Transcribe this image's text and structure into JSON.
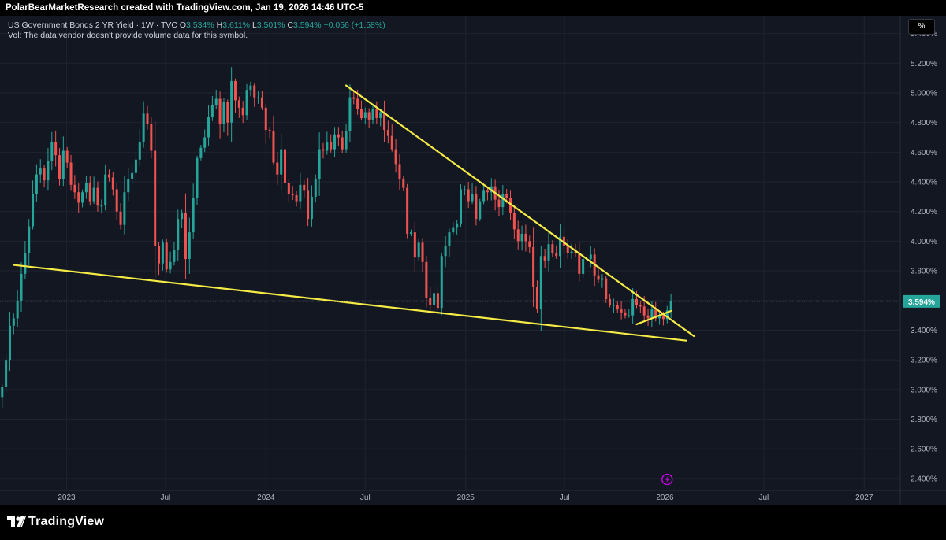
{
  "header": {
    "attribution": "PolarBearMarketResearch created with TradingView.com, Jan 19, 2026 14:46 UTC-5"
  },
  "legend": {
    "symbol_line": "US Government Bonds 2 YR Yield · 1W · TVC",
    "open_key": "O",
    "open": "3.534%",
    "high_key": "H",
    "high": "3.611%",
    "low_key": "L",
    "low": "3.501%",
    "close_key": "C",
    "close": "3.594%",
    "change": "+0.056 (+1.58%)",
    "vol_note": "Vol: The data vendor doesn't provide volume data for this symbol."
  },
  "scale_unit": "%",
  "footer": {
    "brand": "TradingView"
  },
  "colors": {
    "background": "#131722",
    "up": "#26a69a",
    "down": "#ef5350",
    "trendline": "#f5eb45",
    "grid": "#1f2330",
    "axis_text": "#b2b5be",
    "last_price_badge": "#26a69a"
  },
  "chart_data": {
    "type": "candlestick",
    "title": "US Government Bonds 2 YR Yield · 1W · TVC",
    "xlabel": "",
    "ylabel": "",
    "x_ticks": [
      "2023",
      "Jul",
      "2024",
      "Jul",
      "2025",
      "Jul",
      "2026",
      "Jul",
      "2027"
    ],
    "x_tick_dates": [
      "2023-01-01",
      "2023-07-01",
      "2024-01-01",
      "2024-07-01",
      "2025-01-01",
      "2025-07-01",
      "2026-01-01",
      "2026-07-01",
      "2027-01-01"
    ],
    "xlim": [
      "2022-09-01",
      "2027-03-08"
    ],
    "y_ticks": [
      "2.400%",
      "2.600%",
      "2.800%",
      "3.000%",
      "3.200%",
      "3.400%",
      "3.600%",
      "3.800%",
      "4.000%",
      "4.200%",
      "4.400%",
      "4.600%",
      "4.800%",
      "5.000%",
      "5.200%",
      "5.400%"
    ],
    "y_tick_values": [
      2.4,
      2.6,
      2.8,
      3.0,
      3.2,
      3.4,
      3.6,
      3.8,
      4.0,
      4.2,
      4.4,
      4.6,
      4.8,
      5.0,
      5.2,
      5.4
    ],
    "ylim": [
      2.32,
      5.52
    ],
    "grid": true,
    "last_price": {
      "value": 3.594,
      "label": "3.594%"
    },
    "series": [
      {
        "close": [
          3.02,
          3.2,
          3.43,
          3.48,
          3.6,
          3.78,
          3.92,
          4.1,
          4.32,
          4.45,
          4.49,
          4.41,
          4.54,
          4.67,
          4.58,
          4.42,
          4.61,
          4.53,
          4.38,
          4.33,
          4.26,
          4.33,
          4.39,
          4.27,
          4.36,
          4.24,
          4.24,
          4.45,
          4.43,
          4.35,
          4.2,
          4.11,
          4.33,
          4.42,
          4.46,
          4.55,
          4.67,
          4.86,
          4.79,
          4.61,
          3.97,
          3.85,
          3.99,
          3.81,
          3.86,
          3.94,
          4.15,
          4.19,
          3.88,
          4.06,
          4.29,
          4.56,
          4.63,
          4.7,
          4.84,
          4.92,
          4.96,
          4.79,
          4.94,
          4.8,
          5.08,
          4.95,
          4.9,
          4.85,
          5.02,
          5.05,
          4.97,
          4.97,
          4.9,
          4.75,
          4.74,
          4.53,
          4.45,
          4.62,
          4.39,
          4.32,
          4.31,
          4.27,
          4.38,
          4.34,
          4.15,
          4.3,
          4.42,
          4.62,
          4.61,
          4.67,
          4.62,
          4.72,
          4.7,
          4.62,
          4.74,
          4.97,
          4.96,
          4.89,
          4.83,
          4.87,
          4.82,
          4.89,
          4.83,
          4.87,
          4.75,
          4.71,
          4.62,
          4.52,
          4.42,
          4.36,
          4.05,
          4.06,
          3.89,
          3.99,
          3.86,
          3.62,
          3.57,
          3.65,
          3.55,
          3.9,
          3.97,
          4.06,
          4.09,
          4.12,
          4.35,
          4.35,
          4.27,
          4.32,
          4.15,
          4.27,
          4.34,
          4.33,
          4.37,
          4.28,
          4.23,
          4.32,
          4.29,
          4.19,
          4.08,
          4.0,
          4.05,
          4.0,
          3.96,
          3.69,
          3.54,
          3.9,
          3.87,
          3.98,
          3.92,
          3.9,
          4.03,
          3.97,
          3.92,
          3.93,
          3.92,
          3.78,
          3.88,
          3.88,
          3.91,
          3.77,
          3.74,
          3.75,
          3.61,
          3.57,
          3.57,
          3.54,
          3.52,
          3.5,
          3.5,
          3.61,
          3.57,
          3.56,
          3.5,
          3.48,
          3.54,
          3.48,
          3.5,
          3.475,
          3.534,
          3.594
        ],
        "open": [
          2.95,
          3.02,
          3.2,
          3.43,
          3.48,
          3.6,
          3.78,
          3.92,
          4.1,
          4.32,
          4.45,
          4.49,
          4.41,
          4.54,
          4.67,
          4.58,
          4.42,
          4.61,
          4.53,
          4.38,
          4.33,
          4.26,
          4.33,
          4.39,
          4.27,
          4.36,
          4.24,
          4.24,
          4.45,
          4.43,
          4.35,
          4.2,
          4.11,
          4.33,
          4.42,
          4.46,
          4.55,
          4.67,
          4.86,
          4.79,
          4.61,
          3.97,
          3.85,
          3.99,
          3.81,
          3.86,
          3.94,
          4.15,
          4.19,
          3.88,
          4.06,
          4.29,
          4.56,
          4.63,
          4.7,
          4.84,
          4.92,
          4.96,
          4.79,
          4.94,
          4.8,
          5.08,
          4.95,
          4.9,
          4.85,
          5.02,
          5.05,
          4.97,
          4.97,
          4.9,
          4.75,
          4.74,
          4.53,
          4.45,
          4.62,
          4.39,
          4.32,
          4.31,
          4.27,
          4.38,
          4.34,
          4.15,
          4.3,
          4.42,
          4.62,
          4.61,
          4.67,
          4.62,
          4.72,
          4.7,
          4.62,
          4.74,
          4.97,
          4.96,
          4.89,
          4.83,
          4.87,
          4.82,
          4.89,
          4.83,
          4.87,
          4.75,
          4.71,
          4.62,
          4.52,
          4.42,
          4.36,
          4.05,
          4.06,
          3.89,
          3.99,
          3.86,
          3.62,
          3.57,
          3.65,
          3.55,
          3.9,
          3.97,
          4.06,
          4.09,
          4.12,
          4.35,
          4.35,
          4.27,
          4.32,
          4.15,
          4.27,
          4.34,
          4.33,
          4.37,
          4.28,
          4.23,
          4.32,
          4.29,
          4.19,
          4.08,
          4.0,
          4.05,
          4.0,
          3.96,
          3.69,
          3.54,
          3.9,
          3.87,
          3.98,
          3.92,
          3.9,
          4.03,
          3.97,
          3.92,
          3.93,
          3.92,
          3.78,
          3.88,
          3.88,
          3.91,
          3.77,
          3.74,
          3.75,
          3.61,
          3.57,
          3.57,
          3.54,
          3.52,
          3.5,
          3.5,
          3.61,
          3.57,
          3.56,
          3.5,
          3.48,
          3.54,
          3.48,
          3.5,
          3.475,
          3.534
        ],
        "start_date": "2022-09-05",
        "interval_days": 7
      }
    ],
    "annotations": [
      {
        "type": "trendline",
        "name": "lower support",
        "from": [
          "2022-09-26",
          3.84
        ],
        "to": [
          "2026-02-09",
          3.33
        ]
      },
      {
        "type": "trendline",
        "name": "upper resistance",
        "from": [
          "2024-05-27",
          5.05
        ],
        "to": [
          "2026-02-23",
          3.36
        ]
      },
      {
        "type": "trendline",
        "name": "short rising line",
        "from": [
          "2025-11-10",
          3.44
        ],
        "to": [
          "2026-01-12",
          3.53
        ]
      }
    ]
  }
}
